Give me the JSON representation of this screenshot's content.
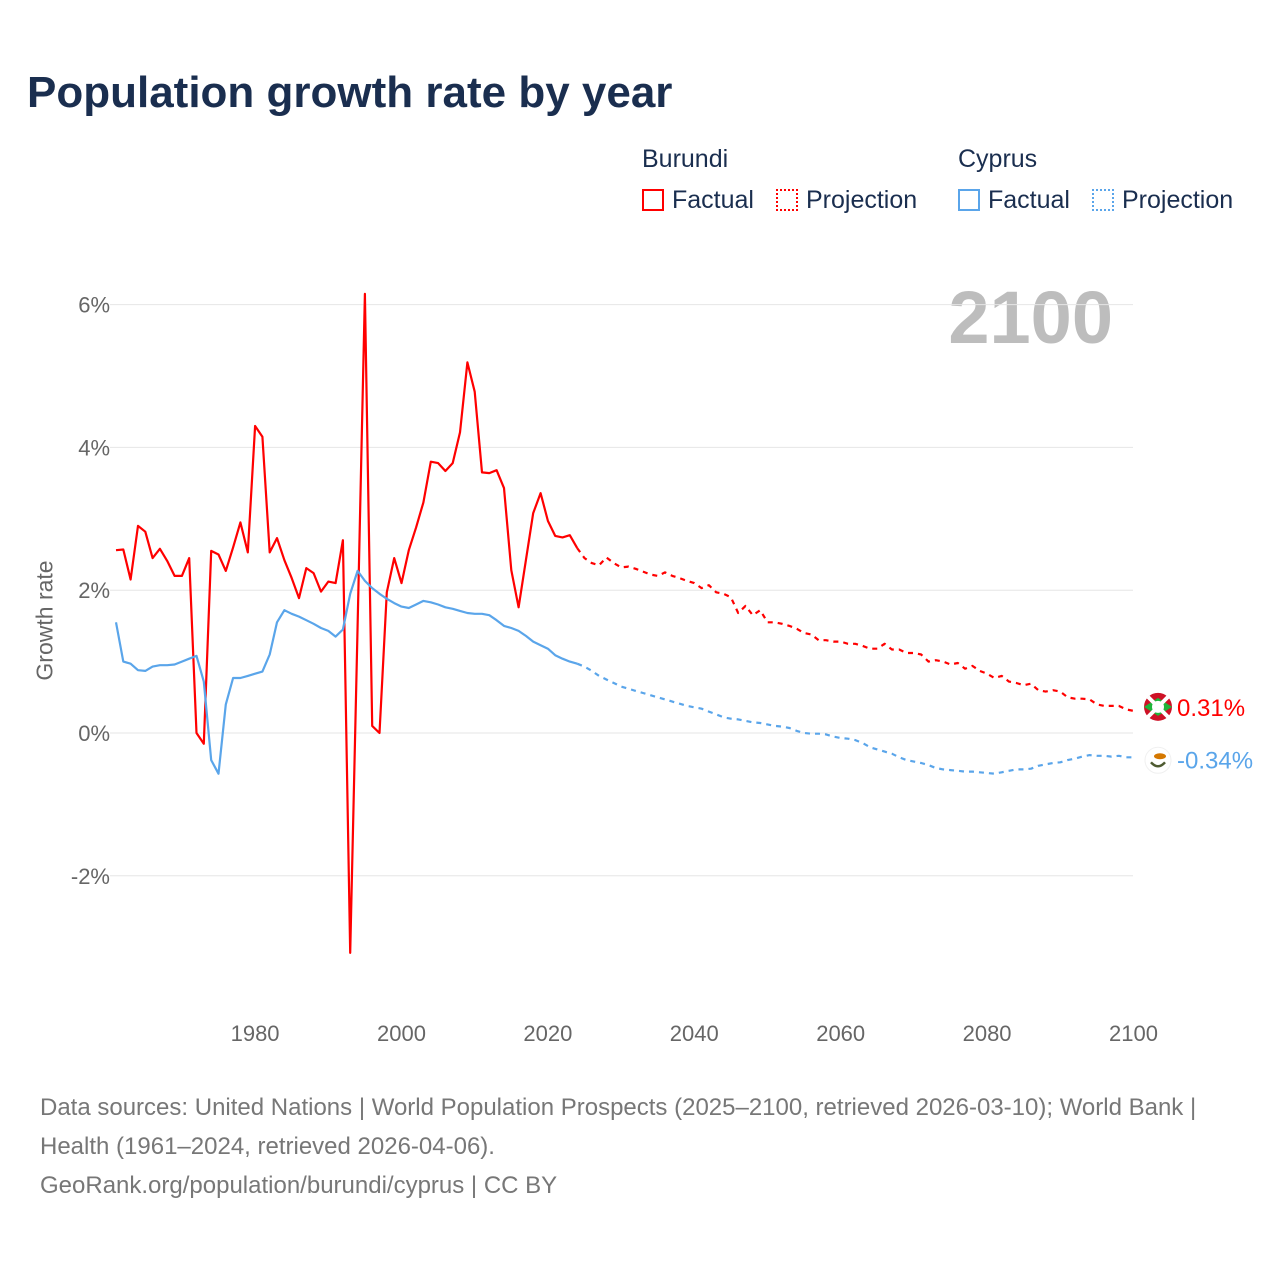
{
  "title": "Population growth rate by year",
  "legend": {
    "groups": [
      {
        "name": "Burundi",
        "color": "#ff0000",
        "items": [
          "Factual",
          "Projection"
        ]
      },
      {
        "name": "Cyprus",
        "color": "#5aa5ea",
        "items": [
          "Factual",
          "Projection"
        ]
      }
    ]
  },
  "current_year_label": "2100",
  "source": {
    "line1": "Data sources: United Nations | World Population Prospects (2025–2100, retrieved 2026-03-10); World Bank | Health (1961–2024, retrieved 2026-04-06).",
    "line2": "GeoRank.org/population/burundi/cyprus | CC BY"
  },
  "chart_data": {
    "type": "line",
    "title": "Population growth rate by year",
    "xlabel": "",
    "ylabel": "Growth rate",
    "xlim": [
      1961,
      2100
    ],
    "ylim": [
      -3.6,
      6.2
    ],
    "x_ticks": [
      1980,
      2000,
      2020,
      2040,
      2060,
      2080,
      2100
    ],
    "x_tick_labels": [
      "1980",
      "2000",
      "2020",
      "2040",
      "2060",
      "2080",
      "2100"
    ],
    "y_ticks": [
      -2,
      0,
      2,
      4,
      6
    ],
    "y_tick_labels": [
      "-2%",
      "0%",
      "2%",
      "4%",
      "6%"
    ],
    "grid": true,
    "legend_position": "top-right",
    "series": [
      {
        "name": "Burundi",
        "kind": "Factual",
        "color": "#ff0000",
        "start_year": 1961,
        "values": [
          2.56,
          2.57,
          2.15,
          2.9,
          2.82,
          2.45,
          2.58,
          2.41,
          2.2,
          2.2,
          2.45,
          0.0,
          -0.15,
          2.55,
          2.5,
          2.27,
          2.6,
          2.95,
          2.53,
          4.3,
          4.15,
          2.53,
          2.73,
          2.42,
          2.17,
          1.89,
          2.31,
          2.24,
          1.98,
          2.12,
          2.1,
          2.7,
          -3.08,
          1.5,
          6.15,
          0.1,
          0.0,
          1.97,
          2.45,
          2.1,
          2.56,
          2.88,
          3.23,
          3.8,
          3.78,
          3.67,
          3.78,
          4.21,
          5.19,
          4.78,
          3.65,
          3.64,
          3.68,
          3.43,
          2.28,
          1.76,
          2.42,
          3.08,
          3.36,
          2.97,
          2.76,
          2.74,
          2.77,
          2.59
        ]
      },
      {
        "name": "Burundi",
        "kind": "Projection",
        "color": "#ff0000",
        "start_year": 2024,
        "values": [
          2.59,
          2.45,
          2.38,
          2.35,
          2.46,
          2.38,
          2.32,
          2.33,
          2.3,
          2.26,
          2.22,
          2.2,
          2.25,
          2.2,
          2.17,
          2.13,
          2.1,
          2.03,
          2.07,
          1.97,
          1.95,
          1.9,
          1.68,
          1.78,
          1.65,
          1.72,
          1.55,
          1.55,
          1.53,
          1.5,
          1.46,
          1.4,
          1.38,
          1.3,
          1.3,
          1.28,
          1.28,
          1.25,
          1.25,
          1.22,
          1.18,
          1.18,
          1.25,
          1.17,
          1.17,
          1.12,
          1.12,
          1.1,
          1.0,
          1.02,
          1.0,
          0.96,
          0.98,
          0.9,
          0.94,
          0.87,
          0.83,
          0.77,
          0.8,
          0.72,
          0.7,
          0.67,
          0.69,
          0.6,
          0.58,
          0.6,
          0.58,
          0.5,
          0.48,
          0.48,
          0.47,
          0.4,
          0.38,
          0.38,
          0.38,
          0.33,
          0.31
        ]
      },
      {
        "name": "Cyprus",
        "kind": "Factual",
        "color": "#5aa5ea",
        "start_year": 1961,
        "values": [
          1.55,
          1.0,
          0.97,
          0.88,
          0.87,
          0.93,
          0.95,
          0.95,
          0.96,
          1.0,
          1.04,
          1.08,
          0.72,
          -0.38,
          -0.57,
          0.4,
          0.77,
          0.77,
          0.8,
          0.83,
          0.86,
          1.1,
          1.55,
          1.72,
          1.67,
          1.63,
          1.58,
          1.53,
          1.47,
          1.43,
          1.35,
          1.45,
          1.95,
          2.27,
          2.13,
          2.03,
          1.95,
          1.88,
          1.82,
          1.77,
          1.75,
          1.8,
          1.85,
          1.83,
          1.8,
          1.76,
          1.74,
          1.71,
          1.68,
          1.67,
          1.67,
          1.65,
          1.58,
          1.5,
          1.47,
          1.43,
          1.36,
          1.28,
          1.23,
          1.18,
          1.09,
          1.04,
          1.0,
          0.97
        ]
      },
      {
        "name": "Cyprus",
        "kind": "Projection",
        "color": "#5aa5ea",
        "start_year": 2024,
        "values": [
          0.97,
          0.93,
          0.87,
          0.8,
          0.75,
          0.7,
          0.65,
          0.62,
          0.59,
          0.56,
          0.53,
          0.5,
          0.47,
          0.44,
          0.41,
          0.38,
          0.36,
          0.34,
          0.3,
          0.26,
          0.22,
          0.2,
          0.19,
          0.17,
          0.15,
          0.14,
          0.12,
          0.1,
          0.09,
          0.07,
          0.03,
          0.0,
          -0.01,
          -0.01,
          -0.02,
          -0.05,
          -0.07,
          -0.08,
          -0.1,
          -0.14,
          -0.2,
          -0.23,
          -0.26,
          -0.29,
          -0.34,
          -0.38,
          -0.4,
          -0.42,
          -0.45,
          -0.49,
          -0.51,
          -0.52,
          -0.53,
          -0.54,
          -0.54,
          -0.55,
          -0.56,
          -0.57,
          -0.55,
          -0.53,
          -0.51,
          -0.51,
          -0.5,
          -0.46,
          -0.44,
          -0.42,
          -0.41,
          -0.38,
          -0.36,
          -0.33,
          -0.31,
          -0.32,
          -0.32,
          -0.33,
          -0.32,
          -0.34,
          -0.34
        ]
      }
    ],
    "end_labels": [
      {
        "country": "Burundi",
        "text": "0.31%",
        "value": 0.31,
        "color": "#ff0000"
      },
      {
        "country": "Cyprus",
        "text": "-0.34%",
        "value": -0.34,
        "color": "#5aa5ea"
      }
    ]
  }
}
